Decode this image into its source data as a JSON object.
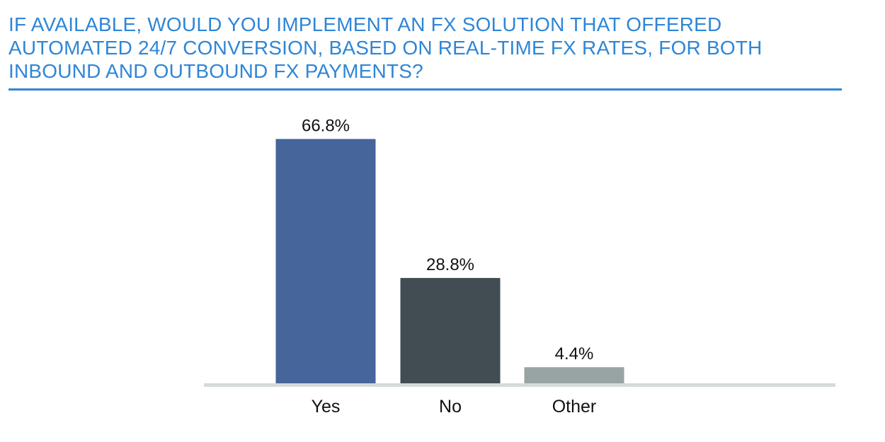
{
  "chart_data": {
    "type": "bar",
    "title": "If available, would you implement an FX solution that offered automated 24/7 conversion, based on real-time FX rates, for both inbound and outbound FX payments?",
    "categories": [
      "Yes",
      "No",
      "Other"
    ],
    "values": [
      66.8,
      28.8,
      4.4
    ],
    "value_labels": [
      "66.8%",
      "28.8%",
      "4.4%"
    ],
    "colors": [
      "#45659b",
      "#414d52",
      "#98a3a3"
    ],
    "xlabel": "",
    "ylabel": "",
    "ylim": [
      0,
      70
    ],
    "grid": false,
    "legend": "none"
  }
}
